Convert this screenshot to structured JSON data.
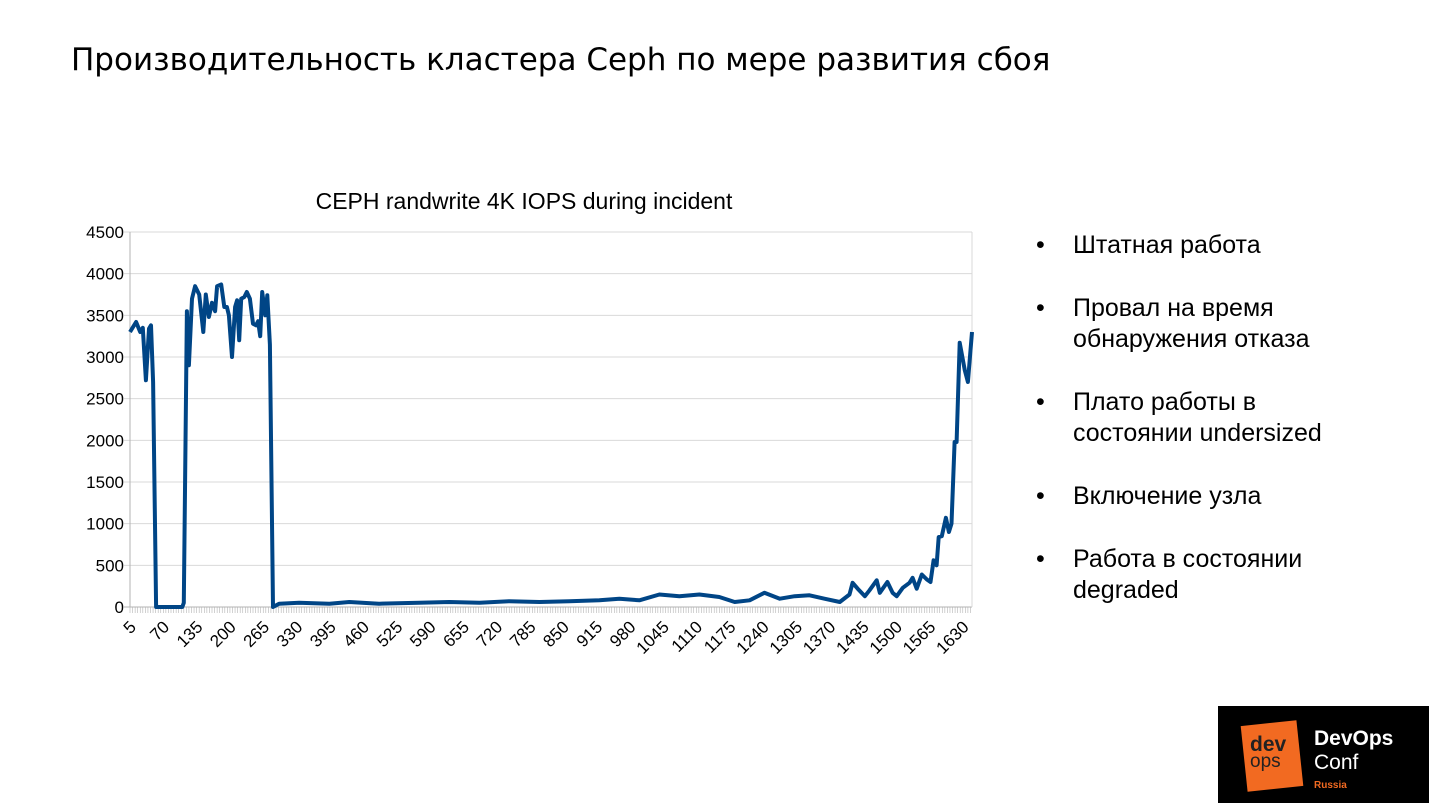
{
  "slide": {
    "title": "Производительность кластера Ceph по мере развития сбоя",
    "bullets": [
      {
        "marker": "•",
        "text": "Штатная работа"
      },
      {
        "marker": "•",
        "text": "Провал на время обнаружения отказа"
      },
      {
        "marker": "•",
        "text": "Плато работы в состоянии undersized"
      },
      {
        "marker": "•",
        "text": "Включение узла"
      },
      {
        "marker": "•",
        "text": "Работа в состоянии degraded"
      }
    ],
    "logo": {
      "dev": "dev",
      "ops": "ops",
      "line1": "DevOps",
      "line2": "Conf",
      "line3": "Russia"
    }
  },
  "colors": {
    "series": "#004586",
    "grid": "#d9d9d9",
    "logo_accent": "#f26a21"
  },
  "chart_data": {
    "type": "line",
    "title": "CEPH randwrite 4K IOPS during incident",
    "xlabel": "",
    "ylabel": "",
    "ylim": [
      0,
      4500
    ],
    "xlim": [
      5,
      1648
    ],
    "yticks": [
      0,
      500,
      1000,
      1500,
      2000,
      2500,
      3000,
      3500,
      4000,
      4500
    ],
    "xticks": [
      5,
      70,
      135,
      200,
      265,
      330,
      395,
      460,
      525,
      590,
      655,
      720,
      785,
      850,
      915,
      980,
      1045,
      1110,
      1175,
      1240,
      1305,
      1370,
      1435,
      1500,
      1565,
      1630
    ],
    "grid": true,
    "legend": "none",
    "series": [
      {
        "name": "IOPS",
        "points": [
          [
            5,
            3300
          ],
          [
            17,
            3420
          ],
          [
            25,
            3300
          ],
          [
            30,
            3350
          ],
          [
            36,
            2720
          ],
          [
            42,
            3340
          ],
          [
            46,
            3380
          ],
          [
            50,
            2700
          ],
          [
            56,
            0
          ],
          [
            107,
            0
          ],
          [
            110,
            50
          ],
          [
            116,
            3550
          ],
          [
            120,
            2900
          ],
          [
            126,
            3700
          ],
          [
            132,
            3850
          ],
          [
            140,
            3750
          ],
          [
            148,
            3300
          ],
          [
            153,
            3750
          ],
          [
            159,
            3480
          ],
          [
            165,
            3650
          ],
          [
            171,
            3550
          ],
          [
            175,
            3850
          ],
          [
            183,
            3870
          ],
          [
            189,
            3600
          ],
          [
            194,
            3600
          ],
          [
            198,
            3500
          ],
          [
            204,
            3000
          ],
          [
            210,
            3600
          ],
          [
            214,
            3680
          ],
          [
            218,
            3200
          ],
          [
            222,
            3700
          ],
          [
            228,
            3720
          ],
          [
            233,
            3780
          ],
          [
            239,
            3700
          ],
          [
            245,
            3400
          ],
          [
            251,
            3380
          ],
          [
            255,
            3430
          ],
          [
            259,
            3250
          ],
          [
            263,
            3780
          ],
          [
            269,
            3500
          ],
          [
            273,
            3740
          ],
          [
            278,
            3150
          ],
          [
            284,
            0
          ],
          [
            296,
            40
          ],
          [
            335,
            50
          ],
          [
            394,
            40
          ],
          [
            433,
            60
          ],
          [
            491,
            40
          ],
          [
            569,
            50
          ],
          [
            628,
            60
          ],
          [
            687,
            50
          ],
          [
            745,
            70
          ],
          [
            804,
            60
          ],
          [
            862,
            70
          ],
          [
            921,
            80
          ],
          [
            960,
            100
          ],
          [
            999,
            80
          ],
          [
            1038,
            150
          ],
          [
            1077,
            130
          ],
          [
            1116,
            150
          ],
          [
            1155,
            120
          ],
          [
            1185,
            60
          ],
          [
            1214,
            80
          ],
          [
            1243,
            170
          ],
          [
            1273,
            100
          ],
          [
            1302,
            130
          ],
          [
            1331,
            140
          ],
          [
            1360,
            100
          ],
          [
            1390,
            60
          ],
          [
            1409,
            150
          ],
          [
            1415,
            290
          ],
          [
            1425,
            220
          ],
          [
            1439,
            130
          ],
          [
            1448,
            200
          ],
          [
            1462,
            320
          ],
          [
            1468,
            170
          ],
          [
            1483,
            300
          ],
          [
            1493,
            170
          ],
          [
            1501,
            130
          ],
          [
            1513,
            230
          ],
          [
            1526,
            290
          ],
          [
            1532,
            350
          ],
          [
            1540,
            220
          ],
          [
            1550,
            390
          ],
          [
            1560,
            330
          ],
          [
            1567,
            300
          ],
          [
            1573,
            560
          ],
          [
            1579,
            500
          ],
          [
            1583,
            840
          ],
          [
            1589,
            850
          ],
          [
            1597,
            1070
          ],
          [
            1603,
            900
          ],
          [
            1608,
            1000
          ],
          [
            1614,
            1980
          ],
          [
            1618,
            1980
          ],
          [
            1624,
            3170
          ],
          [
            1634,
            2840
          ],
          [
            1640,
            2700
          ],
          [
            1648,
            3300
          ]
        ]
      }
    ]
  }
}
